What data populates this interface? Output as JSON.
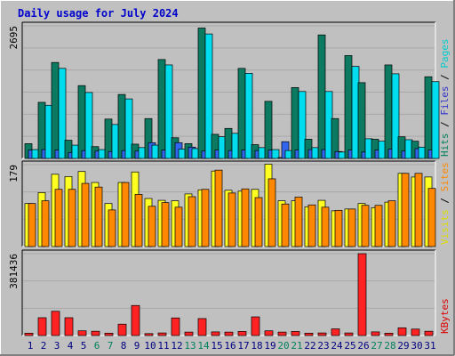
{
  "chart_data": [
    {
      "type": "bar",
      "title": "Daily usage for July 2024",
      "axis_max_label": "2695",
      "ylim": [
        0,
        2695
      ],
      "grid": true,
      "legend": [
        {
          "text": "Pages",
          "color": "#00cccc"
        },
        {
          "text": "Files",
          "color": "#3333cc"
        },
        {
          "text": "Hits",
          "color": "#00805c"
        }
      ],
      "legend_separator": "/",
      "categories": [
        "1",
        "2",
        "3",
        "4",
        "5",
        "6",
        "7",
        "8",
        "9",
        "10",
        "11",
        "12",
        "13",
        "14",
        "15",
        "16",
        "17",
        "18",
        "19",
        "20",
        "21",
        "22",
        "23",
        "24",
        "25",
        "26",
        "27",
        "28",
        "29",
        "30",
        "31"
      ],
      "series": [
        {
          "name": "Hits",
          "color": "#0b7a60",
          "values": [
            300,
            1140,
            1950,
            370,
            1480,
            240,
            800,
            1300,
            290,
            810,
            2010,
            420,
            300,
            2650,
            490,
            610,
            1830,
            280,
            1160,
            1,
            1440,
            390,
            2510,
            810,
            2090,
            1540,
            390,
            1900,
            440,
            350,
            1660
          ]
        },
        {
          "name": "Files",
          "color": "#3366ee",
          "values": [
            170,
            180,
            170,
            120,
            160,
            150,
            140,
            160,
            150,
            320,
            170,
            320,
            230,
            150,
            170,
            160,
            170,
            160,
            170,
            340,
            170,
            180,
            180,
            140,
            170,
            130,
            170,
            190,
            150,
            200,
            170
          ]
        },
        {
          "name": "Pages",
          "color": "#00ddee",
          "values": [
            180,
            1080,
            1830,
            270,
            1340,
            180,
            690,
            1210,
            220,
            270,
            1900,
            190,
            200,
            2530,
            440,
            510,
            1730,
            220,
            180,
            160,
            1360,
            220,
            1360,
            130,
            1870,
            400,
            350,
            1720,
            380,
            230,
            1560
          ]
        }
      ]
    },
    {
      "type": "bar",
      "axis_max_label": "179",
      "ylim": [
        0,
        179
      ],
      "grid": true,
      "legend": [
        {
          "text": "Sites",
          "color": "#ff8800"
        },
        {
          "text": "Visits",
          "color": "#dddd00"
        }
      ],
      "legend_separator": "/",
      "categories": [
        "1",
        "2",
        "3",
        "4",
        "5",
        "6",
        "7",
        "8",
        "9",
        "10",
        "11",
        "12",
        "13",
        "14",
        "15",
        "16",
        "17",
        "18",
        "19",
        "20",
        "21",
        "22",
        "23",
        "24",
        "25",
        "26",
        "27",
        "28",
        "29",
        "30",
        "31"
      ],
      "series": [
        {
          "name": "Visits",
          "color": "#ffff22",
          "values": [
            94,
            118,
            158,
            153,
            164,
            140,
            94,
            140,
            163,
            105,
            101,
            100,
            115,
            124,
            165,
            123,
            121,
            125,
            180,
            100,
            100,
            87,
            101,
            78,
            82,
            94,
            85,
            97,
            160,
            152,
            152
          ]
        },
        {
          "name": "Sites",
          "color": "#ff8800",
          "values": [
            94,
            100,
            125,
            125,
            138,
            130,
            80,
            140,
            114,
            88,
            96,
            86,
            109,
            125,
            167,
            117,
            126,
            107,
            148,
            93,
            108,
            91,
            86,
            79,
            82,
            90,
            90,
            100,
            160,
            160,
            127
          ]
        }
      ]
    },
    {
      "type": "bar",
      "axis_max_label": "381436",
      "ylim": [
        0,
        381436
      ],
      "grid": true,
      "legend": [
        {
          "text": "KBytes",
          "color": "#dd0000"
        }
      ],
      "categories": [
        "1",
        "2",
        "3",
        "4",
        "5",
        "6",
        "7",
        "8",
        "9",
        "10",
        "11",
        "12",
        "13",
        "14",
        "15",
        "16",
        "17",
        "18",
        "19",
        "20",
        "21",
        "22",
        "23",
        "24",
        "25",
        "26",
        "27",
        "28",
        "29",
        "30",
        "31"
      ],
      "series": [
        {
          "name": "KBytes",
          "color": "#ff2222",
          "values": [
            11000,
            83000,
            113000,
            83000,
            22000,
            20000,
            11000,
            53000,
            140000,
            9000,
            12000,
            82000,
            16000,
            79000,
            17000,
            16000,
            19000,
            87000,
            22000,
            16000,
            19000,
            11000,
            12000,
            31000,
            12000,
            381436,
            17000,
            11000,
            36000,
            30000,
            20000
          ]
        }
      ]
    }
  ],
  "day_label_colors": {
    "weekday": "#000080",
    "weekend": "#00805c"
  },
  "weekend_days": [
    "6",
    "7",
    "13",
    "14",
    "20",
    "21",
    "27",
    "28"
  ],
  "panel_bg": "#c0c0c0"
}
